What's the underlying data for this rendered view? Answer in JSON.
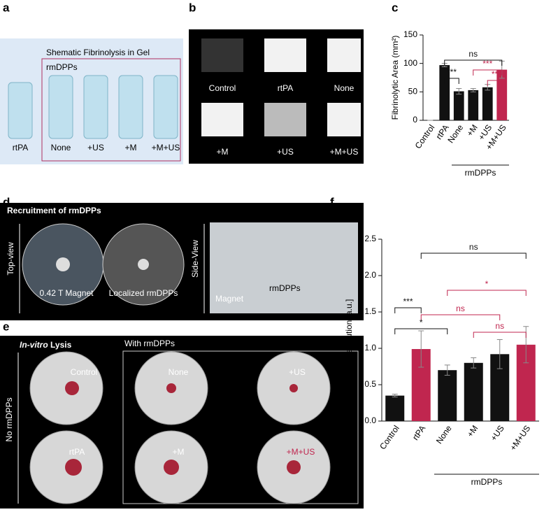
{
  "panels": {
    "a": {
      "letter": "a",
      "title": "Shematic Fibrinolysis in Gel",
      "group": "rmDPPs",
      "labels": [
        "rtPA",
        "None",
        "+US",
        "+M",
        "+M+US"
      ]
    },
    "b": {
      "letter": "b",
      "labels": [
        "Control",
        "rtPA",
        "None",
        "+M",
        "+US",
        "+M+US"
      ]
    },
    "c": {
      "letter": "c"
    },
    "d": {
      "letter": "d",
      "title": "Recruitment of rmDPPs",
      "top_view": "Top-view",
      "side_view": "Side-View",
      "magnet_label": "0.42 T Magnet",
      "localized": "Localized rmDPPs",
      "rmdpps": "rmDPPs",
      "magnet": "Magnet"
    },
    "e": {
      "letter": "e",
      "title_italic": "In-vitro",
      "title_rest": "Lysis",
      "with": "With rmDPPs",
      "without": "No rmDPPs",
      "labels": [
        "Control",
        "None",
        "+US",
        "rtPA",
        "+M",
        "+M+US"
      ]
    },
    "f": {
      "letter": "f"
    }
  },
  "chart_data": [
    {
      "type": "bar",
      "y_label": "Fibrinolytic Area (mm²)",
      "categories": [
        "Control",
        "rtPA",
        "None",
        "+M",
        "+US",
        "+M+US"
      ],
      "values": [
        0,
        97,
        51,
        53,
        58,
        89
      ],
      "errors": [
        0,
        3,
        5,
        3,
        5,
        15
      ],
      "colors": [
        "#111111",
        "#111111",
        "#111111",
        "#111111",
        "#111111",
        "#c0264f"
      ],
      "ylim": [
        0,
        150
      ],
      "yticks": [
        0,
        50,
        100,
        150
      ],
      "group_label": "rmDPPs",
      "annotations": [
        {
          "text": "ns",
          "color": "#111111"
        },
        {
          "text": "***",
          "color": "#111111"
        },
        {
          "text": "***",
          "color": "#c0264f"
        },
        {
          "text": "**",
          "color": "#c0264f"
        }
      ]
    },
    {
      "type": "bar",
      "y_label": "Dissolution [a.u.]",
      "categories": [
        "Control",
        "rtPA",
        "None",
        "+M",
        "+US",
        "+M+US"
      ],
      "values": [
        0.35,
        0.99,
        0.7,
        0.8,
        0.92,
        1.05
      ],
      "errors": [
        0.02,
        0.25,
        0.07,
        0.07,
        0.2,
        0.25
      ],
      "colors": [
        "#111111",
        "#c0264f",
        "#111111",
        "#111111",
        "#111111",
        "#c0264f"
      ],
      "ylim": [
        0,
        2.5
      ],
      "yticks": [
        {
          "value": 0,
          "label": "0.0"
        },
        0.5,
        {
          "value": 1,
          "label": "1.0"
        },
        1.5,
        {
          "value": 2,
          "label": "2.0"
        },
        2.5
      ],
      "group_label": "rmDPPs",
      "annotations": [
        {
          "text": "ns",
          "color": "#111111"
        },
        {
          "text": "*",
          "color": "#c0264f"
        },
        {
          "text": "ns",
          "color": "#c0264f"
        },
        {
          "text": "ns",
          "color": "#c0264f"
        },
        {
          "text": "***",
          "color": "#111111"
        },
        {
          "text": "*",
          "color": "#111111"
        }
      ]
    }
  ]
}
